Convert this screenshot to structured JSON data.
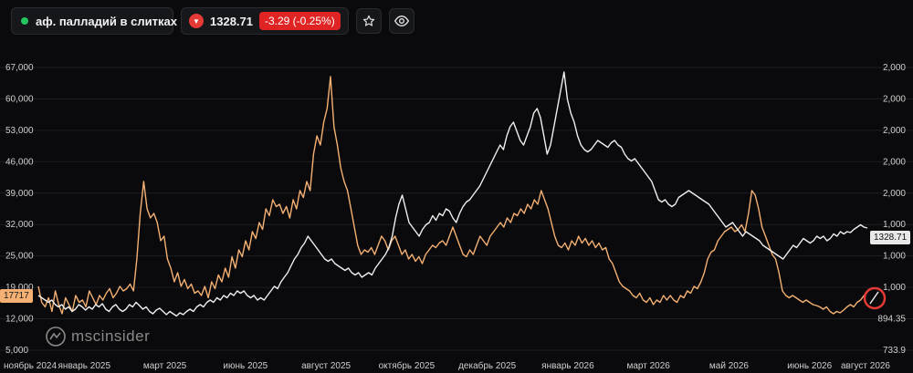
{
  "toolbar": {
    "instrument_name": "аф. палладий в слитках",
    "price": "1328.71",
    "change": "-3.29 (-0.25%)"
  },
  "logo_text": "mscinsider",
  "tags": {
    "left_value": "17717",
    "right_value": "1328.71",
    "right_low": "894.35"
  },
  "colors": {
    "orange": "#f5b173",
    "white": "#f0f0f0",
    "background": "#0a0a0c",
    "negative": "#e02424",
    "live": "#22c55e"
  },
  "chart_data": {
    "type": "line",
    "x_labels": [
      "ноябрь 2024",
      "январь 2025",
      "март 2025",
      "июнь 2025",
      "август 2025",
      "октябрь 2025",
      "декабрь 2025",
      "январь 2026",
      "март 2026",
      "май 2026",
      "июнь 2026",
      "август 2026"
    ],
    "left_axis": {
      "ticks": [
        "67,000",
        "60,000",
        "53,000",
        "46,000",
        "39,000",
        "32,000",
        "25,000",
        "19,000",
        "12,000",
        "5,000"
      ],
      "range": [
        5000,
        67000
      ]
    },
    "right_axis": {
      "ticks": [
        "2,000",
        "2,000",
        "2,000",
        "2,000",
        "2,000",
        "1,000",
        "1,000",
        "1,000",
        "894.35",
        "733.9"
      ]
    },
    "series": [
      {
        "axis": "left",
        "color": "#f5b173",
        "values": [
          19000,
          15500,
          14500,
          16500,
          13500,
          18000,
          15000,
          13000,
          16500,
          15000,
          13500,
          17000,
          15500,
          16000,
          14500,
          18000,
          16500,
          15000,
          17000,
          16000,
          17500,
          18500,
          16500,
          17500,
          19000,
          18000,
          18500,
          19500,
          18000,
          25000,
          35000,
          42000,
          36000,
          34000,
          35000,
          33000,
          29000,
          30000,
          25000,
          23000,
          20000,
          22000,
          19000,
          20500,
          18500,
          19500,
          17500,
          18000,
          17000,
          19000,
          16500,
          20000,
          18500,
          21500,
          20000,
          23000,
          21000,
          25500,
          23000,
          27000,
          25500,
          29000,
          27000,
          31000,
          29500,
          33000,
          31500,
          36000,
          34500,
          38000,
          36500,
          37000,
          35000,
          36500,
          34000,
          38000,
          36000,
          40000,
          38500,
          42000,
          40000,
          48000,
          52000,
          50000,
          55000,
          58000,
          65000,
          54000,
          50000,
          45000,
          42000,
          40000,
          36000,
          32000,
          28000,
          26000,
          27000,
          26500,
          27500,
          26000,
          28000,
          30000,
          29000,
          27000,
          29000,
          30000,
          28000,
          26000,
          27000,
          25000,
          26000,
          24500,
          25500,
          24000,
          26000,
          27000,
          28000,
          27500,
          28500,
          29000,
          28000,
          30000,
          32000,
          30000,
          28000,
          26000,
          25500,
          27000,
          26000,
          28000,
          30000,
          29000,
          28000,
          30000,
          31000,
          32000,
          33000,
          32000,
          34000,
          33000,
          35000,
          34500,
          36000,
          35000,
          37000,
          36000,
          38000,
          37000,
          40000,
          38000,
          36000,
          33000,
          30000,
          28000,
          27500,
          28500,
          27000,
          29000,
          28000,
          30000,
          28500,
          29500,
          28000,
          29000,
          27500,
          28500,
          27000,
          27500,
          25000,
          24000,
          22000,
          20000,
          19000,
          18500,
          18000,
          17000,
          16500,
          17500,
          16000,
          15500,
          16500,
          15000,
          16000,
          15500,
          17000,
          16000,
          17000,
          16000,
          15500,
          17000,
          16500,
          18000,
          17500,
          19000,
          18500,
          20000,
          22000,
          25000,
          26500,
          27000,
          29000,
          30000,
          31000,
          31500,
          32000,
          31000,
          31500,
          32500,
          31000,
          35000,
          40000,
          39000,
          36000,
          32000,
          30000,
          28000,
          26000,
          25000,
          22000,
          18000,
          17000,
          16500,
          17000,
          16500,
          16000,
          15500,
          16000,
          15500,
          15000,
          14800,
          14500,
          14000,
          14500,
          13500,
          13000,
          13500,
          13200,
          13800,
          14500,
          15000,
          14500,
          15500,
          16000,
          17000,
          17717
        ]
      },
      {
        "axis": "left",
        "color": "#f0f0f0",
        "values": [
          17000,
          16500,
          16000,
          15500,
          16000,
          15000,
          14500,
          15000,
          14000,
          14500,
          13500,
          14000,
          15000,
          14500,
          13800,
          14500,
          14000,
          15000,
          14500,
          15200,
          14000,
          13500,
          14500,
          15000,
          14000,
          13500,
          14000,
          15000,
          14500,
          15500,
          14800,
          14000,
          14500,
          13500,
          13000,
          13800,
          14200,
          13500,
          12800,
          13500,
          13000,
          12500,
          13200,
          12800,
          13500,
          14000,
          13500,
          14500,
          15000,
          14500,
          15500,
          16000,
          15500,
          16500,
          16000,
          17000,
          16500,
          17500,
          17000,
          18000,
          17500,
          18000,
          17000,
          16500,
          17000,
          16000,
          16500,
          16000,
          17000,
          18000,
          19000,
          18500,
          20000,
          21000,
          22000,
          23500,
          25000,
          26000,
          27500,
          28500,
          30000,
          29000,
          28000,
          27000,
          26000,
          25000,
          24500,
          25000,
          24000,
          23500,
          23000,
          22500,
          23000,
          22000,
          21500,
          22000,
          21000,
          21500,
          22000,
          21500,
          23000,
          24000,
          25000,
          26000,
          27500,
          30000,
          34000,
          37000,
          39000,
          36000,
          33000,
          32000,
          31000,
          30000,
          31500,
          32500,
          33000,
          34500,
          33500,
          35000,
          34500,
          36000,
          35500,
          34000,
          33000,
          35000,
          36500,
          37500,
          38000,
          39000,
          40000,
          41000,
          42500,
          44000,
          45500,
          47000,
          48500,
          50000,
          49000,
          52000,
          54000,
          55000,
          53000,
          51000,
          50000,
          52000,
          54000,
          57000,
          58000,
          56000,
          52000,
          48000,
          50000,
          54000,
          58000,
          62000,
          66000,
          60000,
          57000,
          55000,
          52000,
          50000,
          49000,
          48500,
          49000,
          50000,
          51000,
          50500,
          50000,
          49500,
          50500,
          51000,
          50000,
          49500,
          48000,
          47000,
          46500,
          47000,
          46000,
          45000,
          44000,
          43000,
          42000,
          40000,
          38000,
          37500,
          38000,
          37000,
          36500,
          37000,
          38500,
          39000,
          39500,
          40000,
          39500,
          39000,
          38500,
          38000,
          37500,
          37000,
          36000,
          35000,
          34000,
          33000,
          32000,
          32500,
          33000,
          32000,
          31000,
          30000,
          31000,
          30500,
          30000,
          29500,
          29000,
          28000,
          27500,
          27000,
          26500,
          26000,
          25500,
          25000,
          26000,
          27000,
          28000,
          27500,
          28500,
          29500,
          29000,
          28500,
          29000,
          30000,
          29500,
          30000,
          29000,
          29500,
          30500,
          30000,
          31000,
          30500,
          31000,
          30800,
          31500,
          32000,
          32500,
          32000,
          31800
        ]
      }
    ],
    "markers": {
      "left_current": "17717",
      "right_current": "1328.71"
    }
  }
}
